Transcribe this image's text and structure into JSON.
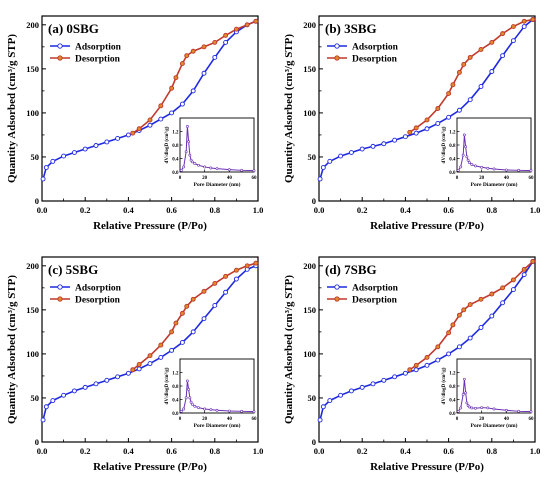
{
  "figure": {
    "colors": {
      "adsorption": "#1f2ae0",
      "desorption": "#c0392b",
      "desorption_marker": "#e08a2c",
      "inset_line": "#6a2fb5",
      "axis": "#000000"
    }
  },
  "chart_data": [
    {
      "type": "line",
      "title": "(a) 0SBG",
      "xlabel": "Relative Pressure (P/Po)",
      "ylabel": "Quantity Adsorbed (cm³/g STP)",
      "xlim": [
        0,
        1.0
      ],
      "ylim": [
        0,
        210
      ],
      "x_ticks": [
        "0.0",
        "0.2",
        "0.4",
        "0.6",
        "0.8",
        "1.0"
      ],
      "y_ticks": [
        "0",
        "50",
        "100",
        "150",
        "200"
      ],
      "legend_position": "top-left",
      "series": [
        {
          "name": "Adsorption",
          "x": [
            0.005,
            0.02,
            0.05,
            0.1,
            0.15,
            0.2,
            0.25,
            0.3,
            0.35,
            0.4,
            0.45,
            0.5,
            0.55,
            0.6,
            0.65,
            0.7,
            0.75,
            0.8,
            0.85,
            0.9,
            0.95,
            0.99
          ],
          "y": [
            25,
            38,
            45,
            51,
            55,
            59,
            63,
            67,
            71,
            75,
            80,
            86,
            93,
            100,
            110,
            125,
            145,
            163,
            180,
            192,
            200,
            204
          ]
        },
        {
          "name": "Desorption",
          "x": [
            0.99,
            0.95,
            0.9,
            0.85,
            0.8,
            0.75,
            0.7,
            0.67,
            0.65,
            0.62,
            0.6,
            0.55,
            0.5,
            0.45,
            0.42
          ],
          "y": [
            204,
            200,
            195,
            188,
            180,
            175,
            170,
            165,
            156,
            140,
            128,
            108,
            92,
            82,
            77
          ]
        }
      ],
      "inset": {
        "xlabel": "Pore Diameter (nm)",
        "ylabel": "dV/dlogD (cm³/g)",
        "xlim": [
          0,
          60
        ],
        "ylim": [
          0,
          1.6
        ],
        "x_ticks": [
          "0",
          "20",
          "40",
          "60"
        ],
        "y_ticks": [
          "0.0",
          "0.4",
          "0.8",
          "1.2"
        ],
        "x": [
          1,
          3,
          5,
          6,
          7,
          8,
          9,
          10,
          12,
          15,
          20,
          25,
          30,
          40,
          50,
          60
        ],
        "y": [
          0.05,
          0.15,
          0.6,
          1.35,
          0.9,
          0.5,
          0.35,
          0.3,
          0.25,
          0.2,
          0.15,
          0.12,
          0.1,
          0.07,
          0.05,
          0.04
        ]
      }
    },
    {
      "type": "line",
      "title": "(b) 3SBG",
      "xlabel": "Relative Pressure (P/Po)",
      "ylabel": "Quantity Adsorbed (cm³/g STP)",
      "xlim": [
        0,
        1.0
      ],
      "ylim": [
        0,
        210
      ],
      "x_ticks": [
        "0.0",
        "0.2",
        "0.4",
        "0.6",
        "0.8",
        "1.0"
      ],
      "y_ticks": [
        "0",
        "50",
        "100",
        "150",
        "200"
      ],
      "legend_position": "top-left",
      "series": [
        {
          "name": "Adsorption",
          "x": [
            0.005,
            0.02,
            0.05,
            0.1,
            0.15,
            0.2,
            0.25,
            0.3,
            0.35,
            0.4,
            0.45,
            0.5,
            0.55,
            0.6,
            0.65,
            0.7,
            0.75,
            0.8,
            0.85,
            0.9,
            0.95,
            0.99
          ],
          "y": [
            25,
            38,
            45,
            51,
            55,
            59,
            62,
            65,
            69,
            73,
            77,
            82,
            88,
            95,
            103,
            115,
            130,
            147,
            165,
            182,
            198,
            206
          ]
        },
        {
          "name": "Desorption",
          "x": [
            0.99,
            0.95,
            0.9,
            0.85,
            0.8,
            0.75,
            0.7,
            0.67,
            0.65,
            0.62,
            0.6,
            0.55,
            0.5,
            0.45,
            0.42
          ],
          "y": [
            206,
            204,
            198,
            190,
            180,
            172,
            163,
            155,
            146,
            132,
            122,
            105,
            92,
            83,
            78
          ]
        }
      ],
      "inset": {
        "xlabel": "Pore Diameter (nm)",
        "ylabel": "dV/dlogD (cm³/g)",
        "xlim": [
          0,
          60
        ],
        "ylim": [
          0,
          1.6
        ],
        "x_ticks": [
          "0",
          "20",
          "40",
          "60"
        ],
        "y_ticks": [
          "0.0",
          "0.4",
          "0.8",
          "1.2"
        ],
        "x": [
          1,
          3,
          5,
          6,
          7,
          8,
          9,
          10,
          12,
          15,
          20,
          25,
          30,
          40,
          50,
          60
        ],
        "y": [
          0.05,
          0.15,
          0.5,
          1.1,
          0.75,
          0.45,
          0.35,
          0.28,
          0.22,
          0.18,
          0.14,
          0.11,
          0.09,
          0.06,
          0.05,
          0.04
        ]
      }
    },
    {
      "type": "line",
      "title": "(c) 5SBG",
      "xlabel": "Relative Pressure (P/Po)",
      "ylabel": "Quantity Adsorbed (cm³/g STP)",
      "xlim": [
        0,
        1.0
      ],
      "ylim": [
        0,
        210
      ],
      "x_ticks": [
        "0.0",
        "0.2",
        "0.4",
        "0.6",
        "0.8",
        "1.0"
      ],
      "y_ticks": [
        "0",
        "50",
        "100",
        "150",
        "200"
      ],
      "legend_position": "top-left",
      "series": [
        {
          "name": "Adsorption",
          "x": [
            0.005,
            0.02,
            0.05,
            0.1,
            0.15,
            0.2,
            0.25,
            0.3,
            0.35,
            0.4,
            0.45,
            0.5,
            0.55,
            0.6,
            0.65,
            0.7,
            0.75,
            0.8,
            0.85,
            0.9,
            0.95,
            0.99
          ],
          "y": [
            25,
            40,
            47,
            53,
            58,
            62,
            66,
            70,
            74,
            78,
            83,
            89,
            96,
            104,
            113,
            125,
            140,
            155,
            170,
            185,
            196,
            200
          ]
        },
        {
          "name": "Desorption",
          "x": [
            0.99,
            0.95,
            0.9,
            0.85,
            0.8,
            0.75,
            0.7,
            0.67,
            0.65,
            0.62,
            0.6,
            0.55,
            0.5,
            0.45,
            0.42
          ],
          "y": [
            203,
            200,
            195,
            188,
            180,
            171,
            162,
            154,
            146,
            135,
            125,
            110,
            98,
            88,
            82
          ]
        }
      ],
      "inset": {
        "xlabel": "Pore Diameter (nm)",
        "ylabel": "dV/dlogD (cm³/g)",
        "xlim": [
          0,
          60
        ],
        "ylim": [
          0,
          1.6
        ],
        "x_ticks": [
          "0",
          "20",
          "40",
          "60"
        ],
        "y_ticks": [
          "0.0",
          "0.4",
          "0.8",
          "1.2"
        ],
        "x": [
          1,
          3,
          5,
          6,
          7,
          8,
          9,
          10,
          12,
          15,
          20,
          25,
          30,
          40,
          50,
          60
        ],
        "y": [
          0.05,
          0.12,
          0.45,
          0.95,
          0.7,
          0.45,
          0.32,
          0.26,
          0.2,
          0.16,
          0.12,
          0.1,
          0.08,
          0.06,
          0.05,
          0.04
        ]
      }
    },
    {
      "type": "line",
      "title": "(d) 7SBG",
      "xlabel": "Relative Pressure (P/Po)",
      "ylabel": "Quantity Adsorbed (cm³/g STP)",
      "xlim": [
        0,
        1.0
      ],
      "ylim": [
        0,
        210
      ],
      "x_ticks": [
        "0.0",
        "0.2",
        "0.4",
        "0.6",
        "0.8",
        "1.0"
      ],
      "y_ticks": [
        "0",
        "50",
        "100",
        "150",
        "200"
      ],
      "legend_position": "top-left",
      "series": [
        {
          "name": "Adsorption",
          "x": [
            0.005,
            0.02,
            0.05,
            0.1,
            0.15,
            0.2,
            0.25,
            0.3,
            0.35,
            0.4,
            0.45,
            0.5,
            0.55,
            0.6,
            0.65,
            0.7,
            0.75,
            0.8,
            0.85,
            0.9,
            0.95,
            0.99
          ],
          "y": [
            25,
            40,
            47,
            53,
            58,
            62,
            66,
            70,
            74,
            78,
            82,
            87,
            93,
            100,
            108,
            118,
            130,
            143,
            158,
            173,
            190,
            205
          ]
        },
        {
          "name": "Desorption",
          "x": [
            0.99,
            0.95,
            0.9,
            0.85,
            0.8,
            0.75,
            0.7,
            0.67,
            0.65,
            0.62,
            0.6,
            0.55,
            0.5,
            0.45,
            0.42
          ],
          "y": [
            205,
            196,
            184,
            175,
            168,
            162,
            156,
            150,
            144,
            133,
            124,
            108,
            96,
            87,
            82
          ]
        }
      ],
      "inset": {
        "xlabel": "Pore Diameter (nm)",
        "ylabel": "dV/dlogD (cm³/g)",
        "xlim": [
          0,
          60
        ],
        "ylim": [
          0,
          1.6
        ],
        "x_ticks": [
          "0",
          "20",
          "40",
          "60"
        ],
        "y_ticks": [
          "0.0",
          "0.4",
          "0.8",
          "1.2"
        ],
        "x": [
          1,
          3,
          5,
          6,
          7,
          8,
          9,
          10,
          12,
          15,
          20,
          25,
          30,
          40,
          50,
          60
        ],
        "y": [
          0.05,
          0.15,
          0.55,
          1.0,
          0.6,
          0.3,
          0.22,
          0.18,
          0.15,
          0.14,
          0.16,
          0.15,
          0.12,
          0.08,
          0.05,
          0.04
        ]
      }
    }
  ]
}
